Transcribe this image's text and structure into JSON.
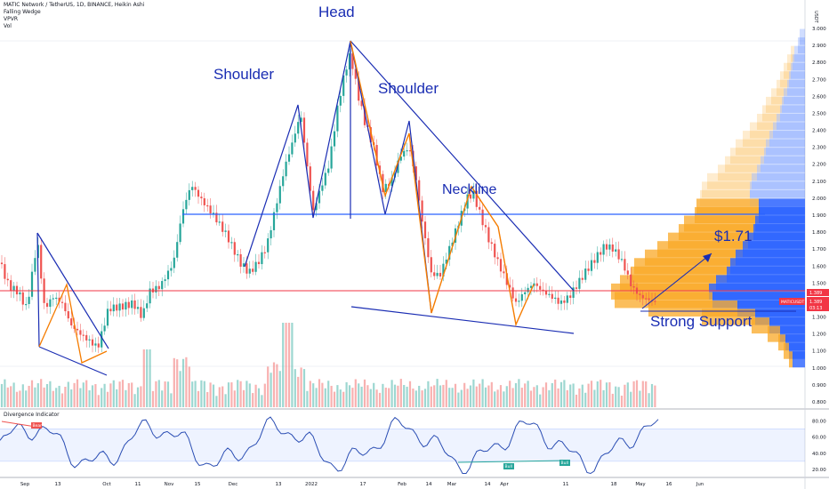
{
  "header": {
    "title": "MATIC Network / TetherUS, 1D, BINANCE, Heikin Ashi",
    "indicators": [
      "Falling Wedge",
      "VPVR",
      "Vol"
    ]
  },
  "annotations": {
    "head": "Head",
    "shoulder_left": "Shoulder",
    "shoulder_right": "Shoulder",
    "neckline": "Neckline",
    "target": "$1.71",
    "support": "Strong Support"
  },
  "price_axis": {
    "currency": "USDT",
    "ticks": [
      "0.800",
      "0.900",
      "1.000",
      "1.100",
      "1.200",
      "1.300",
      "1.400",
      "1.500",
      "1.600",
      "1.700",
      "1.800",
      "1.900",
      "2.000",
      "2.100",
      "2.200",
      "2.300",
      "2.400",
      "2.500",
      "2.600",
      "2.700",
      "2.800",
      "2.900",
      "3.000"
    ],
    "tags": {
      "symbol": "MATICUSDT",
      "last_price": "1.389",
      "price_dup": "1.389",
      "countdown": "03:13"
    },
    "lock_label": "🔒",
    "ratio_label": "2.900"
  },
  "time_axis": {
    "labels": [
      "Sep",
      "13",
      "Oct",
      "11",
      "Nov",
      "15",
      "Dec",
      "13",
      "2022",
      "17",
      "Feb",
      "14",
      "Mar",
      "14",
      "Apr",
      "11",
      "18",
      "May",
      "16",
      "Jun"
    ]
  },
  "oscillator": {
    "title": "Divergence Indicator",
    "ticks": [
      "80.00",
      "60.00",
      "40.00",
      "20.00"
    ],
    "tags": {
      "bear": "Bear",
      "bull1": "Bull",
      "bull2": "Bull",
      "left_tag": "Bear"
    }
  },
  "colors": {
    "up": "#26a69a",
    "down": "#ef5350",
    "pattern": "#1a2db3",
    "zigzag": "#f57c00",
    "neckline": "#2962ff",
    "support_line": "#f23645",
    "vp_blue": "#2962ff",
    "vp_orange": "#f9a825",
    "osc_line": "#2a4db3"
  },
  "chart_data": {
    "type": "candlestick",
    "title": "MATIC Network / TetherUS, 1D, BINANCE, Heikin Ashi",
    "price_range": [
      0.8,
      3.0
    ],
    "key_levels": {
      "neckline": 1.9,
      "support": 1.39,
      "target": 1.71
    },
    "pattern_points": [
      {
        "label": "Shoulder",
        "price": 2.55
      },
      {
        "label": "Head",
        "price": 2.92
      },
      {
        "label": "Shoulder",
        "price": 2.44
      }
    ],
    "osc_range": [
      20,
      80
    ]
  }
}
